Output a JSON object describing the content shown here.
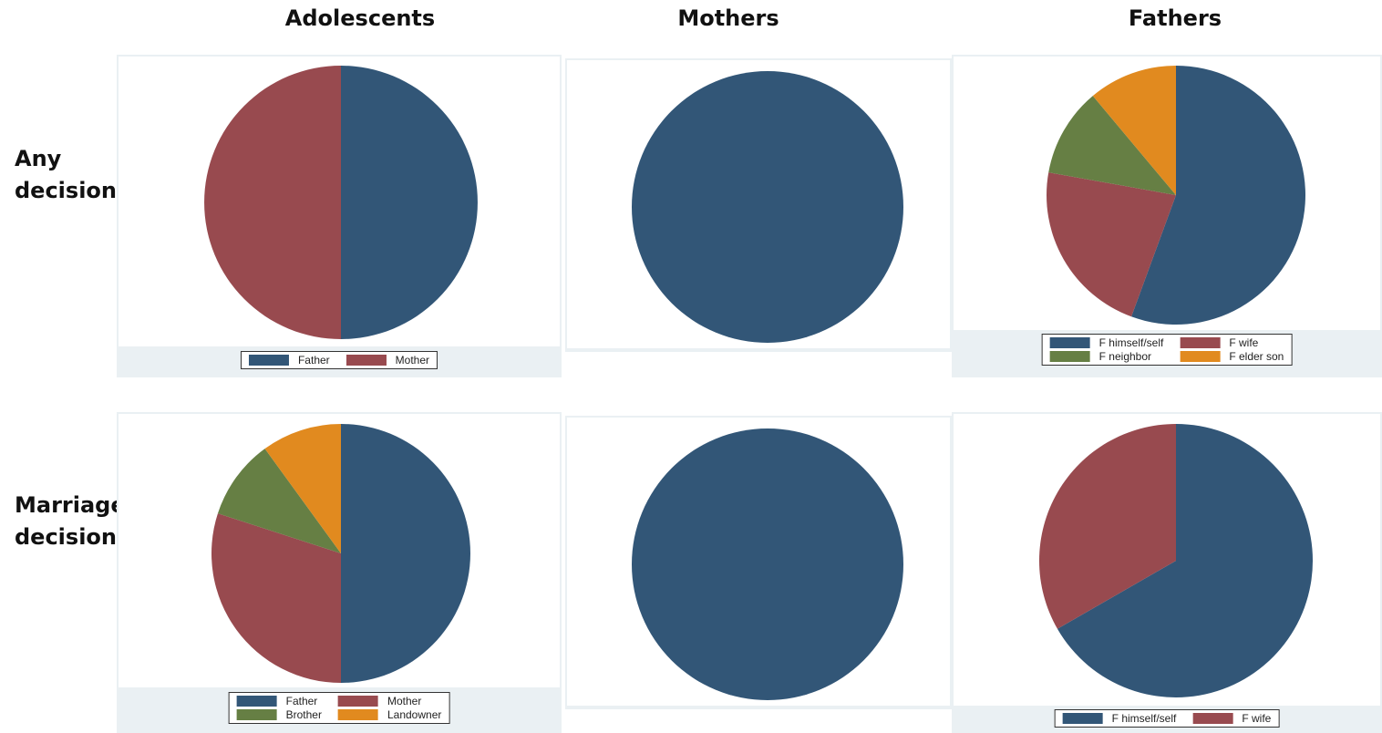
{
  "column_headers": [
    "Adolescents",
    "Mothers",
    "Fathers"
  ],
  "row_headers": [
    {
      "line1": "Any",
      "line2": "decision"
    },
    {
      "line1": "Marriage",
      "line2": "decision"
    }
  ],
  "colors": {
    "blue": "#325677",
    "red": "#984a4f",
    "green": "#667f44",
    "orange": "#e18a1f",
    "panel_background": "#eaf0f3"
  },
  "chart_data": [
    {
      "type": "pie",
      "row": "Any decision",
      "column": "Adolescents",
      "slices": [
        {
          "label": "Father",
          "value": 50,
          "color": "#325677"
        },
        {
          "label": "Mother",
          "value": 50,
          "color": "#984a4f"
        }
      ],
      "legend": [
        "Father",
        "Mother"
      ]
    },
    {
      "type": "pie",
      "row": "Any decision",
      "column": "Mothers",
      "slices": [
        {
          "label": "",
          "value": 100,
          "color": "#325677"
        }
      ],
      "legend": []
    },
    {
      "type": "pie",
      "row": "Any decision",
      "column": "Fathers",
      "slices": [
        {
          "label": "F himself/self",
          "value": 55.6,
          "color": "#325677"
        },
        {
          "label": "F wife",
          "value": 22.2,
          "color": "#984a4f"
        },
        {
          "label": "F neighbor",
          "value": 11.1,
          "color": "#667f44"
        },
        {
          "label": "F elder son",
          "value": 11.1,
          "color": "#e18a1f"
        }
      ],
      "legend": [
        "F himself/self",
        "F wife",
        "F neighbor",
        "F elder son"
      ]
    },
    {
      "type": "pie",
      "row": "Marriage decision",
      "column": "Adolescents",
      "slices": [
        {
          "label": "Father",
          "value": 50,
          "color": "#325677"
        },
        {
          "label": "Mother",
          "value": 30,
          "color": "#984a4f"
        },
        {
          "label": "Brother",
          "value": 10,
          "color": "#667f44"
        },
        {
          "label": "Landowner",
          "value": 10,
          "color": "#e18a1f"
        }
      ],
      "legend": [
        "Father",
        "Mother",
        "Brother",
        "Landowner"
      ]
    },
    {
      "type": "pie",
      "row": "Marriage decision",
      "column": "Mothers",
      "slices": [
        {
          "label": "",
          "value": 100,
          "color": "#325677"
        }
      ],
      "legend": []
    },
    {
      "type": "pie",
      "row": "Marriage decision",
      "column": "Fathers",
      "slices": [
        {
          "label": "F himself/self",
          "value": 66.7,
          "color": "#325677"
        },
        {
          "label": "F wife",
          "value": 33.3,
          "color": "#984a4f"
        }
      ],
      "legend": [
        "F himself/self",
        "F wife"
      ]
    }
  ]
}
